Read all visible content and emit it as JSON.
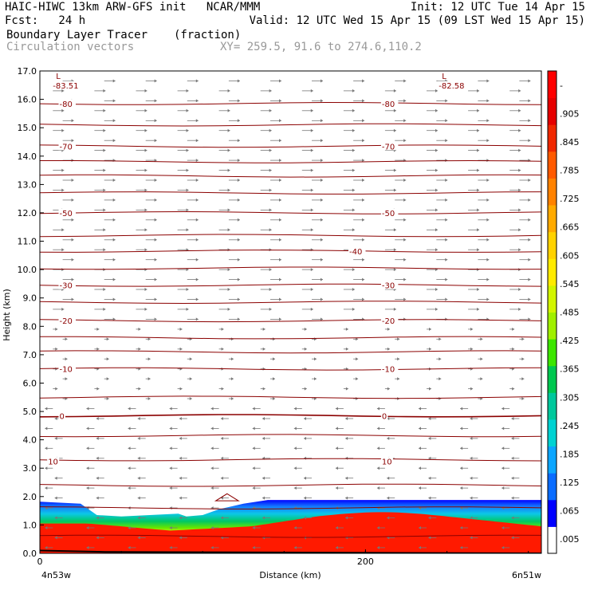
{
  "header": {
    "line1_left": "HAIC-HIWC 13km ARW-GFS init   NCAR/MMM",
    "line1_right": "Init: 12 UTC Tue 14 Apr 15",
    "line2_left": "Fcst:   24 h",
    "line2_right": "Valid: 12 UTC Wed 15 Apr 15 (09 LST Wed 15 Apr 15)",
    "field_name": "Boundary Layer Tracer",
    "field_unit": "(fraction)",
    "vector_label": "Circulation vectors",
    "xy_label": "XY= 259.5, 91.6 to 274.6,110.2"
  },
  "chart_data": {
    "type": "heatmap",
    "xlabel": "Distance (km)",
    "ylabel": "Height (km)",
    "x_range": [
      0,
      308
    ],
    "ylim": [
      0,
      17
    ],
    "y_ticks": [
      "0.0",
      "1.0",
      "2.0",
      "3.0",
      "4.0",
      "5.0",
      "6.0",
      "7.0",
      "8.0",
      "9.0",
      "10.0",
      "11.0",
      "12.0",
      "13.0",
      "14.0",
      "15.0",
      "16.0",
      "17.0"
    ],
    "x_ticks": [
      {
        "value": 0,
        "label": "0"
      },
      {
        "value": 200,
        "label": "200"
      }
    ],
    "x_left_label": "4n53w",
    "x_right_label": "6n51w",
    "colorbar_labels": [
      ".005",
      ".065",
      ".125",
      ".185",
      ".245",
      ".305",
      ".365",
      ".425",
      ".485",
      ".545",
      ".605",
      ".665",
      ".725",
      ".785",
      ".845",
      ".905",
      "-"
    ],
    "colorbar_colors": [
      "#ffffff",
      "#0000ff",
      "#0a6cff",
      "#0ca6ff",
      "#00d2d2",
      "#00c89c",
      "#00c850",
      "#3ce600",
      "#a0f000",
      "#d2f500",
      "#ffeb00",
      "#ffd200",
      "#ffaa00",
      "#ff8200",
      "#ff5a00",
      "#f02800",
      "#e60000",
      "#ff0000"
    ],
    "temperature_labels": [
      {
        "value": "-83.51",
        "x": 8,
        "y": 16.5,
        "low": "L"
      },
      {
        "value": "-82.58",
        "x": 245,
        "y": 16.5,
        "low": "L"
      },
      {
        "value": "-80",
        "x": 12,
        "y": 15.85
      },
      {
        "value": "-80",
        "x": 210,
        "y": 15.85
      },
      {
        "value": "-70",
        "x": 12,
        "y": 14.35
      },
      {
        "value": "-70",
        "x": 210,
        "y": 14.35
      },
      {
        "value": "-50",
        "x": 12,
        "y": 12.0
      },
      {
        "value": "-50",
        "x": 210,
        "y": 12.0
      },
      {
        "value": "-40",
        "x": 190,
        "y": 10.65
      },
      {
        "value": "-30",
        "x": 12,
        "y": 9.45
      },
      {
        "value": "-30",
        "x": 210,
        "y": 9.45
      },
      {
        "value": "-20",
        "x": 12,
        "y": 8.2
      },
      {
        "value": "-20",
        "x": 210,
        "y": 8.2
      },
      {
        "value": "-10",
        "x": 12,
        "y": 6.5
      },
      {
        "value": "-10",
        "x": 210,
        "y": 6.5
      },
      {
        "value": "0",
        "x": 12,
        "y": 4.85
      },
      {
        "value": "0",
        "x": 210,
        "y": 4.85
      },
      {
        "value": "10",
        "x": 5,
        "y": 3.25
      },
      {
        "value": "10",
        "x": 210,
        "y": 3.25
      }
    ],
    "legend_colors": {
      "contour": "#8b0000",
      "vectors": "#777777",
      "terrain": "#000000"
    }
  }
}
